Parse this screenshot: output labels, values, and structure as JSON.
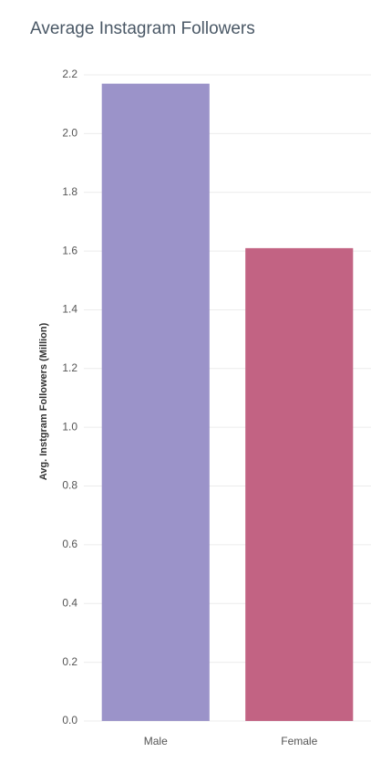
{
  "chart_data": {
    "type": "bar",
    "title": "Average Instagram Followers",
    "y_label": "Avg. Instgram Followers (Million)",
    "categories": [
      "Male",
      "Female"
    ],
    "series": [
      {
        "name": "Avg. Instgram Followers (Million)",
        "values": [
          2.17,
          1.61
        ]
      }
    ],
    "colors": [
      "#9b93c9",
      "#c26383"
    ],
    "ylim": [
      -0.025,
      2.27
    ],
    "yticks": [
      {
        "value": 0,
        "label": "0.0"
      },
      0.2,
      0.4,
      0.6,
      0.8,
      {
        "value": 1,
        "label": "1.0"
      },
      1.2,
      1.4,
      1.6,
      1.8,
      {
        "value": 2,
        "label": "2.0"
      },
      2.2
    ],
    "grid": true
  }
}
